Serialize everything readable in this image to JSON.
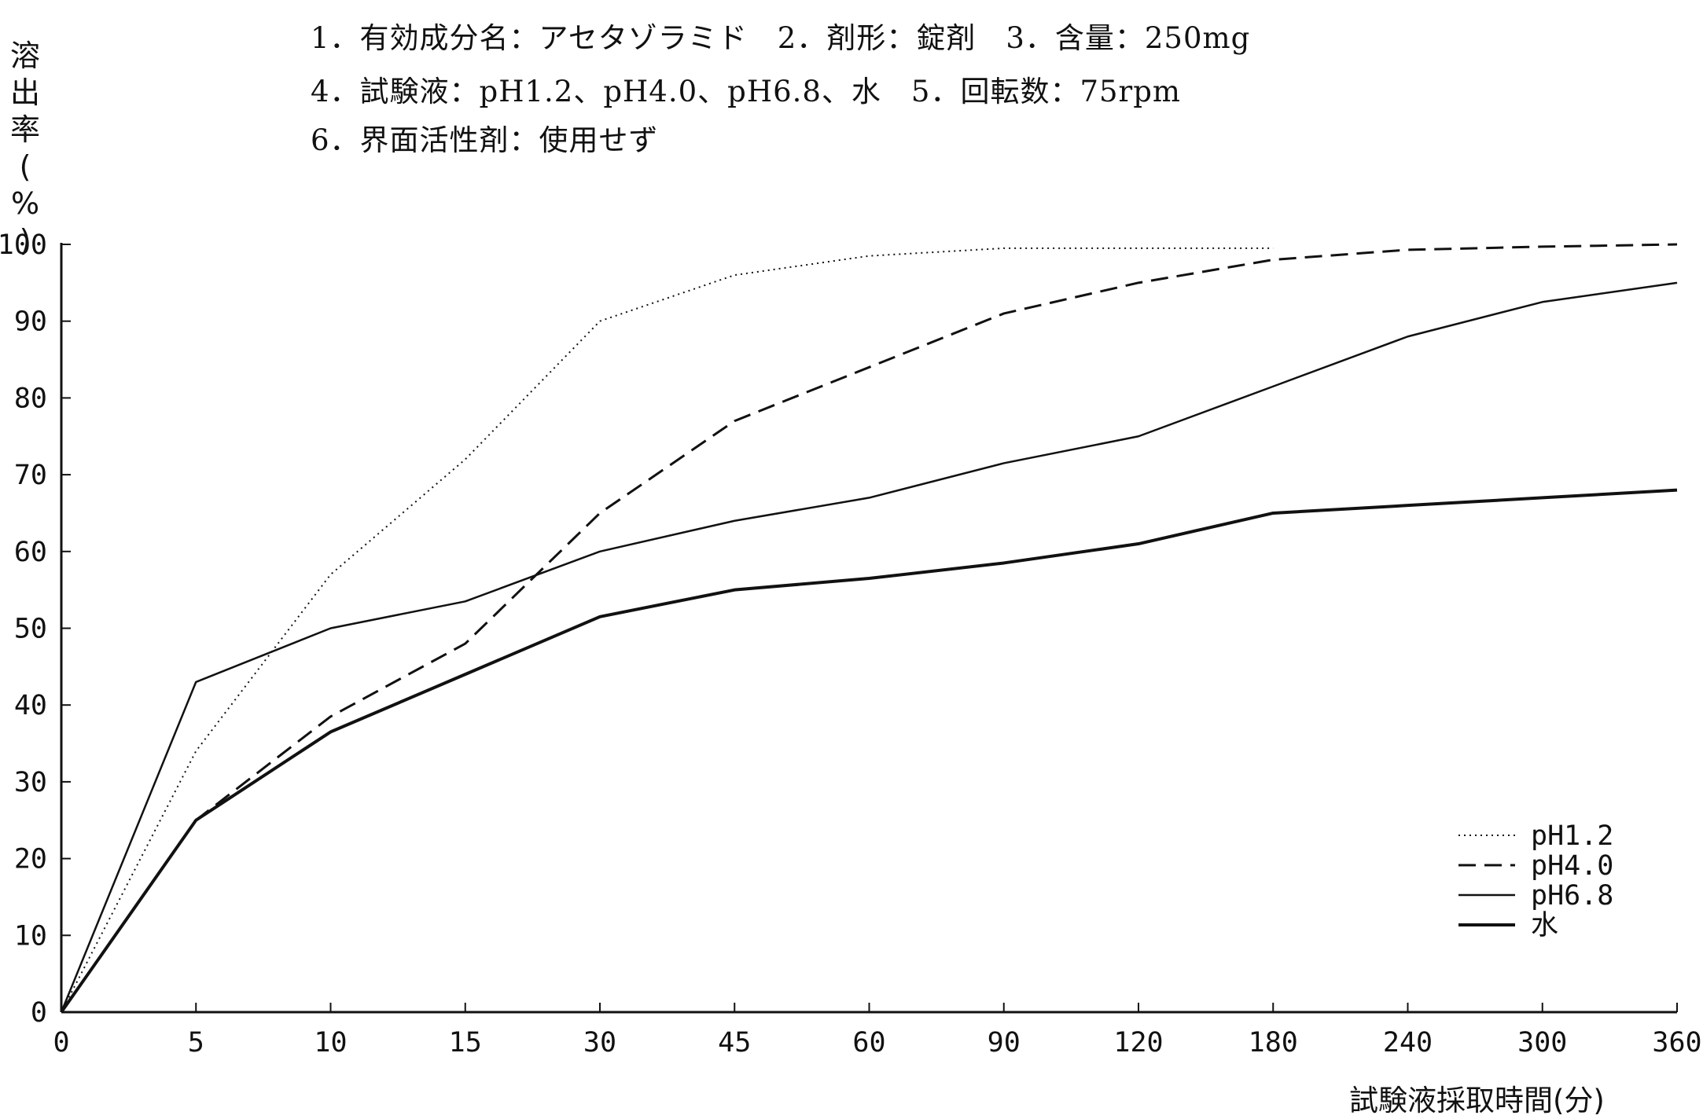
{
  "header": {
    "line1": "1．有効成分名：アセタゾラミド　2．剤形：錠剤　3．含量：250mg",
    "line2": "4．試験液：pH1.2、pH4.0、pH6.8、水　5．回転数：75rpm",
    "line3": "6．界面活性剤：使用せず"
  },
  "chart_data": {
    "type": "line",
    "xlabel": "試験液採取時間(分)",
    "ylabel": "溶出率(%)",
    "ylim": [
      0,
      100
    ],
    "yticks": [
      0,
      10,
      20,
      30,
      40,
      50,
      60,
      70,
      80,
      90,
      100
    ],
    "categories": [
      "0",
      "5",
      "10",
      "15",
      "30",
      "45",
      "60",
      "90",
      "120",
      "180",
      "240",
      "300",
      "360"
    ],
    "grid": false,
    "legend_position": "bottom-right",
    "series": [
      {
        "name": "pH1.2",
        "style": "dotted",
        "values": [
          0,
          34,
          57,
          72,
          90,
          96,
          98.5,
          99.5,
          99.5,
          99.5,
          null,
          null,
          null
        ]
      },
      {
        "name": "pH4.0",
        "style": "dashed",
        "values": [
          0,
          25,
          38.5,
          48,
          65,
          77,
          84,
          91,
          95,
          98,
          99.3,
          99.7,
          100
        ]
      },
      {
        "name": "pH6.8",
        "style": "solid-thin",
        "values": [
          0,
          43,
          50,
          53.5,
          60,
          64,
          67,
          71.5,
          75,
          81.5,
          88,
          92.5,
          95
        ]
      },
      {
        "name": "水",
        "style": "solid-thick",
        "values": [
          0,
          25,
          36.5,
          44,
          51.5,
          55,
          56.5,
          58.5,
          61,
          65,
          66,
          67,
          68
        ]
      }
    ],
    "colors": {
      "line": "#111111",
      "axis": "#111111",
      "background": "#ffffff"
    }
  }
}
